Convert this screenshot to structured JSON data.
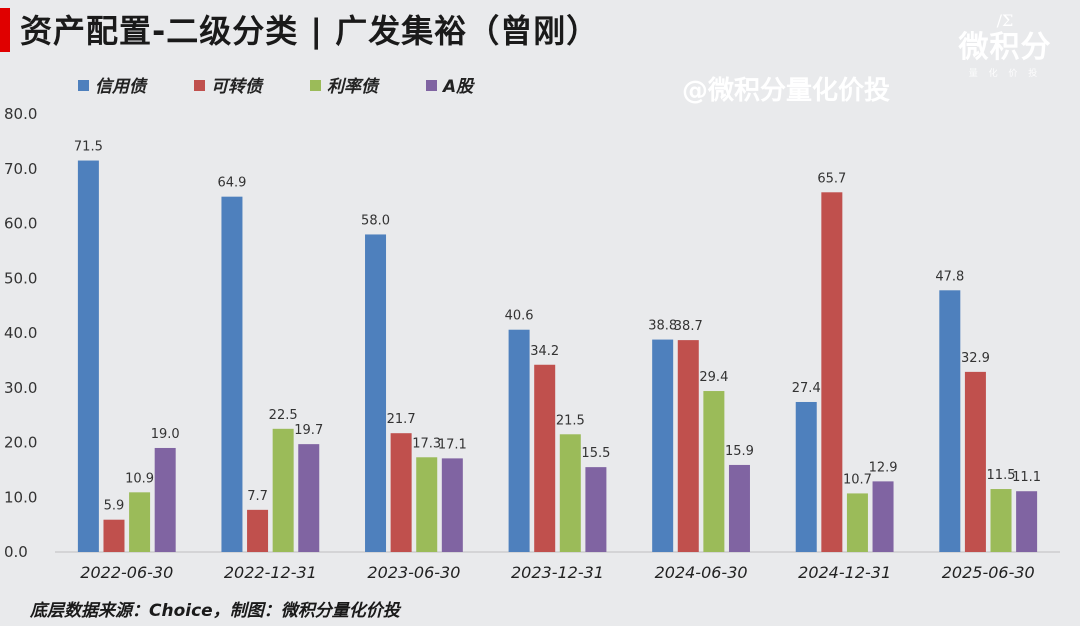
{
  "title": "资产配置-二级分类 | 广发集裕（曾刚）",
  "brand": {
    "logo": "/Σ",
    "name": "微积分",
    "sub": "量 化 价 投"
  },
  "watermark": "@微积分量化价投",
  "source": "底层数据来源：Choice，制图：微积分量化价投",
  "colors": {
    "accent": "#e00000"
  },
  "chart_data": {
    "type": "bar",
    "categories": [
      "2022-06-30",
      "2022-12-31",
      "2023-06-30",
      "2023-12-31",
      "2024-06-30",
      "2024-12-31",
      "2025-06-30"
    ],
    "series": [
      {
        "name": "信用债",
        "color": "#4e80bd",
        "values": [
          71.5,
          64.9,
          58.0,
          40.6,
          38.8,
          27.4,
          47.8
        ]
      },
      {
        "name": "可转债",
        "color": "#c0504d",
        "values": [
          5.9,
          7.7,
          21.7,
          34.2,
          38.7,
          65.7,
          32.9
        ]
      },
      {
        "name": "利率债",
        "color": "#9bbb59",
        "values": [
          10.9,
          22.5,
          17.3,
          21.5,
          29.4,
          10.7,
          11.5
        ]
      },
      {
        "name": "A股",
        "color": "#8064a2",
        "values": [
          19.0,
          19.7,
          17.1,
          15.5,
          15.9,
          12.9,
          11.1
        ]
      }
    ],
    "ylim": [
      0,
      80
    ],
    "yticks": [
      "0.0",
      "10.0",
      "20.0",
      "30.0",
      "40.0",
      "50.0",
      "60.0",
      "70.0",
      "80.0"
    ],
    "grid": false,
    "legend": "top-left",
    "xlabel": "",
    "ylabel": ""
  }
}
